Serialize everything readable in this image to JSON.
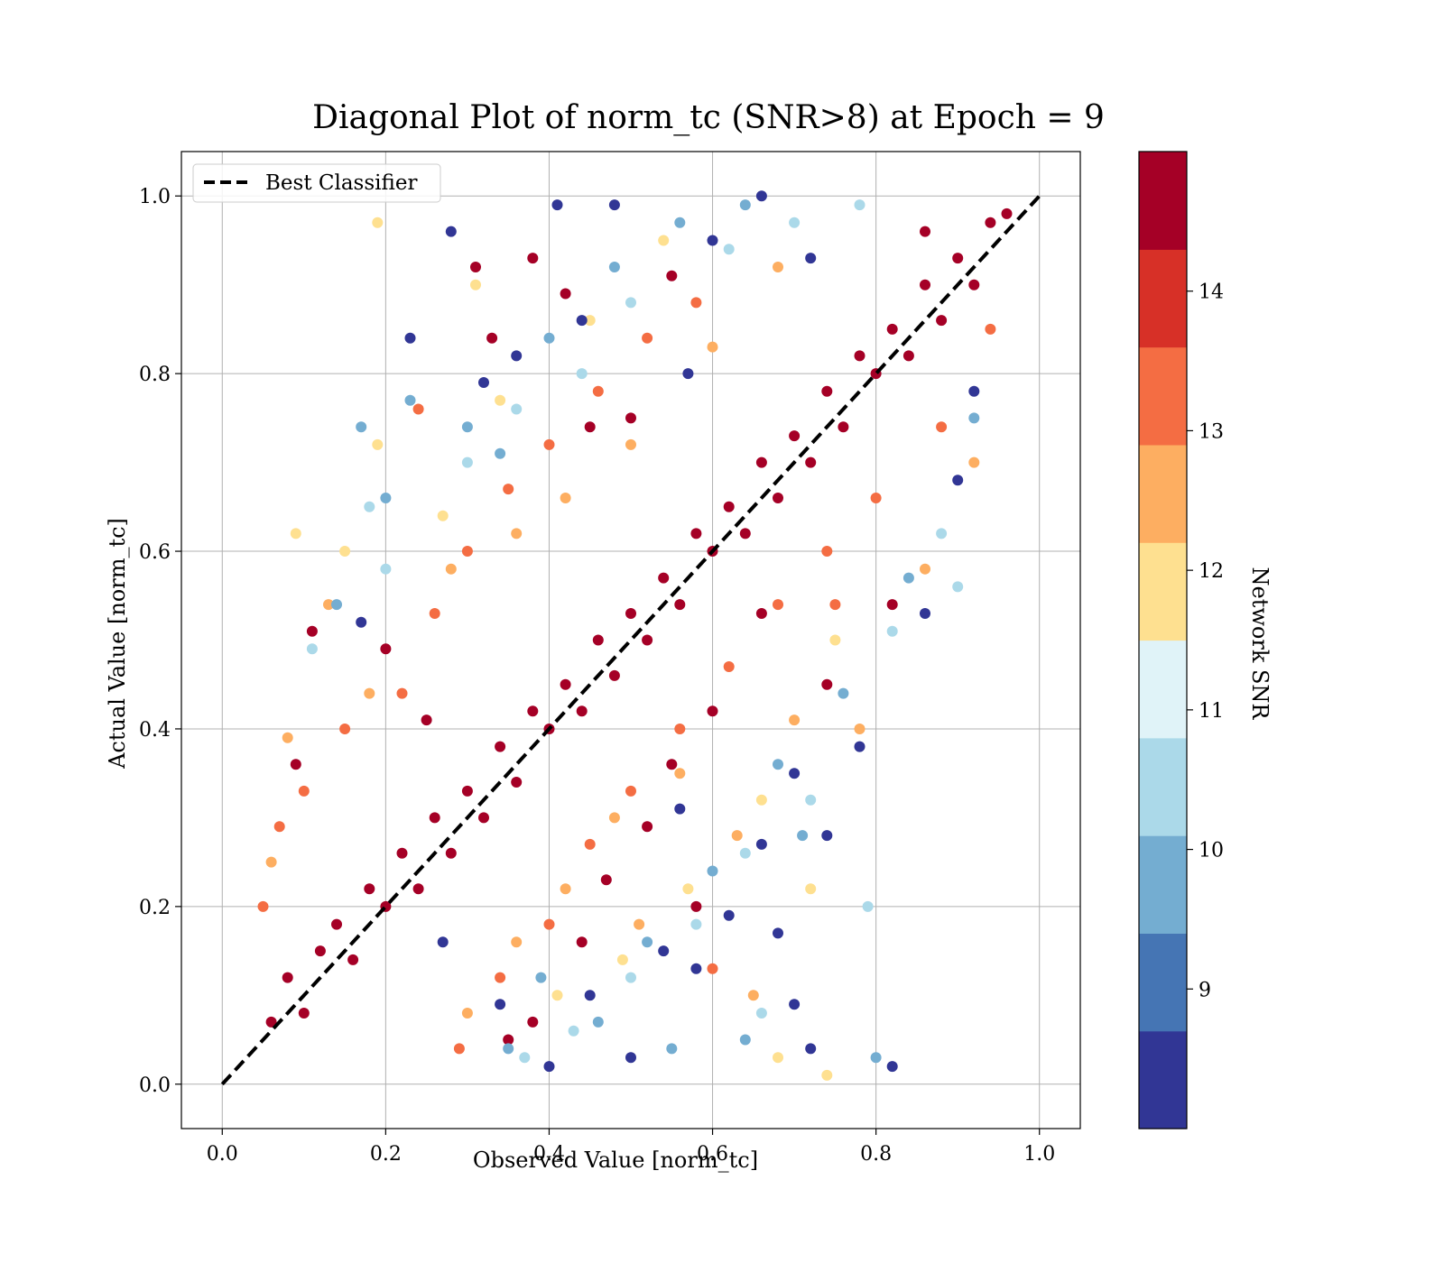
{
  "chart_data": {
    "type": "scatter",
    "title": "Diagonal Plot of norm_tc (SNR>8) at Epoch = 9",
    "xlabel": "Observed Value [norm_tc]",
    "ylabel": "Actual Value [norm_tc]",
    "xlim": [
      -0.05,
      1.05
    ],
    "ylim": [
      -0.05,
      1.05
    ],
    "xticks": [
      0.0,
      0.2,
      0.4,
      0.6,
      0.8,
      1.0
    ],
    "xtick_labels": [
      "0.0",
      "0.2",
      "0.4",
      "0.6",
      "0.8",
      "1.0"
    ],
    "yticks": [
      0.0,
      0.2,
      0.4,
      0.6,
      0.8,
      1.0
    ],
    "ytick_labels": [
      "0.0",
      "0.2",
      "0.4",
      "0.6",
      "0.8",
      "1.0"
    ],
    "grid": true,
    "legend": {
      "placement": "upper-left",
      "entries": [
        {
          "label": "Best Classifier",
          "style": "dashed",
          "color": "#000000"
        }
      ]
    },
    "reference_line": {
      "name": "Best Classifier",
      "x": [
        0.0,
        1.0
      ],
      "y": [
        0.0,
        1.0
      ],
      "style": "dashed",
      "color": "#000000"
    },
    "colorbar": {
      "label": "Network SNR",
      "range": [
        8.0,
        15.0
      ],
      "ticks": [
        9,
        10,
        11,
        12,
        13,
        14
      ],
      "tick_labels": [
        "9",
        "10",
        "11",
        "12",
        "13",
        "14"
      ],
      "colors": [
        "#313695",
        "#4575b4",
        "#74add1",
        "#abd9e9",
        "#e0f3f8",
        "#fee090",
        "#fdae61",
        "#f46d43",
        "#d73027",
        "#a50026"
      ]
    },
    "points_description_value": 0,
    "points": [
      [
        0.06,
        0.07,
        15
      ],
      [
        0.08,
        0.12,
        15
      ],
      [
        0.1,
        0.08,
        15
      ],
      [
        0.12,
        0.15,
        15
      ],
      [
        0.14,
        0.18,
        15
      ],
      [
        0.16,
        0.14,
        15
      ],
      [
        0.18,
        0.22,
        15
      ],
      [
        0.2,
        0.2,
        15
      ],
      [
        0.22,
        0.26,
        15
      ],
      [
        0.24,
        0.22,
        15
      ],
      [
        0.26,
        0.3,
        15
      ],
      [
        0.28,
        0.26,
        15
      ],
      [
        0.3,
        0.33,
        15
      ],
      [
        0.32,
        0.3,
        15
      ],
      [
        0.34,
        0.38,
        15
      ],
      [
        0.36,
        0.34,
        15
      ],
      [
        0.38,
        0.42,
        15
      ],
      [
        0.4,
        0.4,
        15
      ],
      [
        0.42,
        0.45,
        15
      ],
      [
        0.44,
        0.42,
        15
      ],
      [
        0.46,
        0.5,
        15
      ],
      [
        0.48,
        0.46,
        15
      ],
      [
        0.5,
        0.53,
        15
      ],
      [
        0.52,
        0.5,
        15
      ],
      [
        0.54,
        0.57,
        15
      ],
      [
        0.56,
        0.54,
        15
      ],
      [
        0.58,
        0.62,
        15
      ],
      [
        0.6,
        0.6,
        15
      ],
      [
        0.62,
        0.65,
        15
      ],
      [
        0.64,
        0.62,
        15
      ],
      [
        0.66,
        0.7,
        15
      ],
      [
        0.68,
        0.66,
        15
      ],
      [
        0.7,
        0.73,
        15
      ],
      [
        0.72,
        0.7,
        15
      ],
      [
        0.74,
        0.78,
        15
      ],
      [
        0.76,
        0.74,
        15
      ],
      [
        0.78,
        0.82,
        15
      ],
      [
        0.8,
        0.8,
        15
      ],
      [
        0.82,
        0.85,
        15
      ],
      [
        0.84,
        0.82,
        15
      ],
      [
        0.86,
        0.9,
        15
      ],
      [
        0.88,
        0.86,
        15
      ],
      [
        0.9,
        0.93,
        15
      ],
      [
        0.92,
        0.9,
        15
      ],
      [
        0.94,
        0.97,
        15
      ],
      [
        0.96,
        0.98,
        15
      ],
      [
        0.09,
        0.36,
        14.5
      ],
      [
        0.11,
        0.51,
        14.5
      ],
      [
        0.2,
        0.49,
        14.5
      ],
      [
        0.25,
        0.41,
        14.5
      ],
      [
        0.31,
        0.92,
        14.5
      ],
      [
        0.33,
        0.84,
        14.5
      ],
      [
        0.38,
        0.93,
        14.5
      ],
      [
        0.42,
        0.89,
        14.5
      ],
      [
        0.45,
        0.74,
        14.5
      ],
      [
        0.5,
        0.75,
        14.5
      ],
      [
        0.55,
        0.91,
        14.5
      ],
      [
        0.35,
        0.05,
        14.5
      ],
      [
        0.38,
        0.07,
        14.5
      ],
      [
        0.44,
        0.16,
        14.5
      ],
      [
        0.47,
        0.23,
        14.5
      ],
      [
        0.52,
        0.29,
        14.5
      ],
      [
        0.55,
        0.36,
        14.5
      ],
      [
        0.58,
        0.2,
        14.5
      ],
      [
        0.74,
        0.45,
        14.5
      ],
      [
        0.82,
        0.54,
        14.5
      ],
      [
        0.6,
        0.42,
        14.5
      ],
      [
        0.66,
        0.53,
        14.5
      ],
      [
        0.86,
        0.96,
        14.5
      ],
      [
        0.05,
        0.2,
        13.5
      ],
      [
        0.07,
        0.29,
        13.5
      ],
      [
        0.1,
        0.33,
        13.5
      ],
      [
        0.15,
        0.4,
        13.5
      ],
      [
        0.22,
        0.44,
        13.5
      ],
      [
        0.26,
        0.53,
        13.5
      ],
      [
        0.3,
        0.6,
        13.5
      ],
      [
        0.35,
        0.67,
        13.5
      ],
      [
        0.4,
        0.72,
        13.5
      ],
      [
        0.46,
        0.78,
        13.5
      ],
      [
        0.52,
        0.84,
        13.5
      ],
      [
        0.58,
        0.88,
        13.5
      ],
      [
        0.24,
        0.76,
        13.5
      ],
      [
        0.29,
        0.04,
        13.5
      ],
      [
        0.34,
        0.12,
        13.5
      ],
      [
        0.4,
        0.18,
        13.5
      ],
      [
        0.45,
        0.27,
        13.5
      ],
      [
        0.5,
        0.33,
        13.5
      ],
      [
        0.56,
        0.4,
        13.5
      ],
      [
        0.62,
        0.47,
        13.5
      ],
      [
        0.68,
        0.54,
        13.5
      ],
      [
        0.74,
        0.6,
        13.5
      ],
      [
        0.8,
        0.66,
        13.5
      ],
      [
        0.88,
        0.74,
        13.5
      ],
      [
        0.94,
        0.85,
        13.5
      ],
      [
        0.6,
        0.13,
        13.5
      ],
      [
        0.75,
        0.54,
        13.5
      ],
      [
        0.06,
        0.25,
        12.5
      ],
      [
        0.08,
        0.39,
        12.5
      ],
      [
        0.13,
        0.54,
        12.5
      ],
      [
        0.18,
        0.44,
        12.5
      ],
      [
        0.28,
        0.58,
        12.5
      ],
      [
        0.36,
        0.62,
        12.5
      ],
      [
        0.42,
        0.66,
        12.5
      ],
      [
        0.5,
        0.72,
        12.5
      ],
      [
        0.6,
        0.83,
        12.5
      ],
      [
        0.68,
        0.92,
        12.5
      ],
      [
        0.3,
        0.08,
        12.5
      ],
      [
        0.36,
        0.16,
        12.5
      ],
      [
        0.42,
        0.22,
        12.5
      ],
      [
        0.48,
        0.3,
        12.5
      ],
      [
        0.56,
        0.35,
        12.5
      ],
      [
        0.63,
        0.28,
        12.5
      ],
      [
        0.7,
        0.41,
        12.5
      ],
      [
        0.78,
        0.4,
        12.5
      ],
      [
        0.86,
        0.58,
        12.5
      ],
      [
        0.92,
        0.7,
        12.5
      ],
      [
        0.65,
        0.1,
        12.5
      ],
      [
        0.51,
        0.18,
        12.5
      ],
      [
        0.09,
        0.62,
        11.5
      ],
      [
        0.15,
        0.6,
        11.5
      ],
      [
        0.19,
        0.97,
        11.5
      ],
      [
        0.19,
        0.72,
        11.5
      ],
      [
        0.27,
        0.64,
        11.5
      ],
      [
        0.34,
        0.77,
        11.5
      ],
      [
        0.45,
        0.86,
        11.5
      ],
      [
        0.54,
        0.95,
        11.5
      ],
      [
        0.41,
        0.1,
        11.5
      ],
      [
        0.49,
        0.14,
        11.5
      ],
      [
        0.57,
        0.22,
        11.5
      ],
      [
        0.66,
        0.32,
        11.5
      ],
      [
        0.72,
        0.22,
        11.5
      ],
      [
        0.75,
        0.5,
        11.5
      ],
      [
        0.68,
        0.03,
        11.5
      ],
      [
        0.74,
        0.01,
        11.5
      ],
      [
        0.31,
        0.9,
        11.5
      ],
      [
        0.11,
        0.49,
        10.5
      ],
      [
        0.18,
        0.65,
        10.5
      ],
      [
        0.2,
        0.58,
        10.5
      ],
      [
        0.3,
        0.7,
        10.5
      ],
      [
        0.36,
        0.76,
        10.5
      ],
      [
        0.44,
        0.8,
        10.5
      ],
      [
        0.5,
        0.88,
        10.5
      ],
      [
        0.62,
        0.94,
        10.5
      ],
      [
        0.7,
        0.97,
        10.5
      ],
      [
        0.78,
        0.99,
        10.5
      ],
      [
        0.43,
        0.06,
        10.5
      ],
      [
        0.5,
        0.12,
        10.5
      ],
      [
        0.58,
        0.18,
        10.5
      ],
      [
        0.64,
        0.26,
        10.5
      ],
      [
        0.72,
        0.32,
        10.5
      ],
      [
        0.82,
        0.51,
        10.5
      ],
      [
        0.88,
        0.62,
        10.5
      ],
      [
        0.9,
        0.56,
        10.5
      ],
      [
        0.66,
        0.08,
        10.5
      ],
      [
        0.37,
        0.03,
        10.5
      ],
      [
        0.79,
        0.2,
        10.5
      ],
      [
        0.14,
        0.54,
        9.5
      ],
      [
        0.17,
        0.74,
        9.5
      ],
      [
        0.2,
        0.66,
        9.5
      ],
      [
        0.23,
        0.77,
        9.5
      ],
      [
        0.3,
        0.74,
        9.5
      ],
      [
        0.34,
        0.71,
        9.5
      ],
      [
        0.4,
        0.84,
        9.5
      ],
      [
        0.48,
        0.92,
        9.5
      ],
      [
        0.56,
        0.97,
        9.5
      ],
      [
        0.64,
        0.99,
        9.5
      ],
      [
        0.35,
        0.04,
        9.5
      ],
      [
        0.39,
        0.12,
        9.5
      ],
      [
        0.46,
        0.07,
        9.5
      ],
      [
        0.52,
        0.16,
        9.5
      ],
      [
        0.6,
        0.24,
        9.5
      ],
      [
        0.68,
        0.36,
        9.5
      ],
      [
        0.76,
        0.44,
        9.5
      ],
      [
        0.84,
        0.57,
        9.5
      ],
      [
        0.92,
        0.75,
        9.5
      ],
      [
        0.71,
        0.28,
        9.5
      ],
      [
        0.8,
        0.03,
        9.5
      ],
      [
        0.64,
        0.05,
        9.5
      ],
      [
        0.55,
        0.04,
        9.5
      ],
      [
        0.17,
        0.52,
        8.5
      ],
      [
        0.23,
        0.84,
        8.5
      ],
      [
        0.28,
        0.96,
        8.5
      ],
      [
        0.32,
        0.79,
        8.5
      ],
      [
        0.36,
        0.82,
        8.5
      ],
      [
        0.41,
        0.99,
        8.5
      ],
      [
        0.44,
        0.86,
        8.5
      ],
      [
        0.48,
        0.99,
        8.5
      ],
      [
        0.57,
        0.8,
        8.5
      ],
      [
        0.6,
        0.95,
        8.5
      ],
      [
        0.66,
        1.0,
        8.5
      ],
      [
        0.72,
        0.93,
        8.5
      ],
      [
        0.9,
        0.68,
        8.5
      ],
      [
        0.86,
        0.53,
        8.5
      ],
      [
        0.82,
        0.02,
        8.5
      ],
      [
        0.72,
        0.04,
        8.5
      ],
      [
        0.7,
        0.09,
        8.5
      ],
      [
        0.68,
        0.17,
        8.5
      ],
      [
        0.7,
        0.35,
        8.5
      ],
      [
        0.66,
        0.27,
        8.5
      ],
      [
        0.62,
        0.19,
        8.5
      ],
      [
        0.58,
        0.13,
        8.5
      ],
      [
        0.54,
        0.15,
        8.5
      ],
      [
        0.5,
        0.03,
        8.5
      ],
      [
        0.45,
        0.1,
        8.5
      ],
      [
        0.4,
        0.02,
        8.5
      ],
      [
        0.34,
        0.09,
        8.5
      ],
      [
        0.56,
        0.31,
        8.5
      ],
      [
        0.78,
        0.38,
        8.5
      ],
      [
        0.74,
        0.28,
        8.5
      ],
      [
        0.92,
        0.78,
        8.5
      ],
      [
        0.27,
        0.16,
        8.5
      ]
    ]
  }
}
